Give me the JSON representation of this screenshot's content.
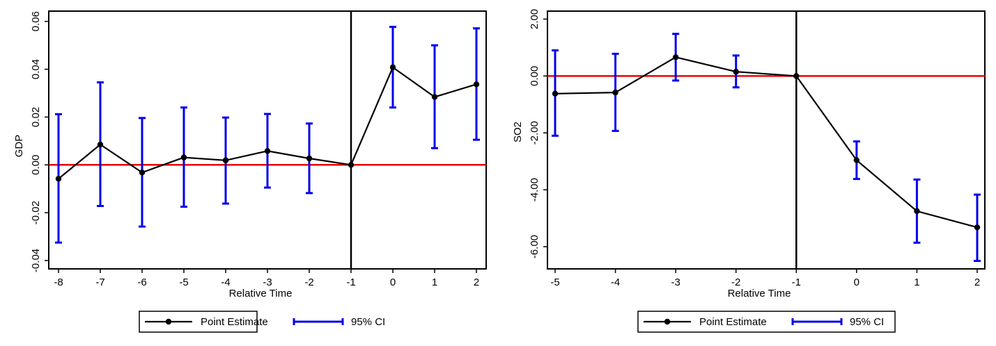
{
  "legend": {
    "point_label": "Point Estimate",
    "ci_label": "95% CI"
  },
  "colors": {
    "point": "#000000",
    "ci": "#0000ee",
    "zero_line": "#ee0000",
    "event_line": "#000000"
  },
  "chart_data": [
    {
      "type": "line",
      "xlabel": "Relative Time",
      "ylabel": "GDP",
      "xlim": [
        -8,
        2
      ],
      "ylim": [
        -0.04,
        0.06
      ],
      "xticks": [
        -8,
        -7,
        -6,
        -5,
        -4,
        -3,
        -2,
        -1,
        0,
        1,
        2
      ],
      "yticks": [
        -0.04,
        -0.02,
        0.0,
        0.02,
        0.04,
        0.06
      ],
      "ytick_labels": [
        "-0.04",
        "-0.02",
        "0.00",
        "0.02",
        "0.04",
        "0.06"
      ],
      "reference_hline": 0,
      "reference_vline": -1,
      "legend_position": "bottom",
      "series": [
        {
          "name": "Point Estimate",
          "x": [
            -8,
            -7,
            -6,
            -5,
            -4,
            -3,
            -2,
            -1,
            0,
            1,
            2
          ],
          "values": [
            -0.0058,
            0.0085,
            -0.0032,
            0.0031,
            0.0019,
            0.0058,
            0.0027,
            0.0,
            0.0408,
            0.0284,
            0.0337
          ],
          "ci_low": [
            -0.0325,
            -0.0172,
            -0.0258,
            -0.0175,
            -0.0162,
            -0.0095,
            -0.0118,
            null,
            0.024,
            0.007,
            0.0105
          ],
          "ci_high": [
            0.0212,
            0.0345,
            0.0196,
            0.024,
            0.0198,
            0.0213,
            0.0173,
            null,
            0.0577,
            0.05,
            0.0571
          ]
        }
      ]
    },
    {
      "type": "line",
      "xlabel": "Relative Time",
      "ylabel": "SO2",
      "xlim": [
        -5,
        2
      ],
      "ylim": [
        -6.8,
        2.2
      ],
      "xticks": [
        -5,
        -4,
        -3,
        -2,
        -1,
        0,
        1,
        2
      ],
      "yticks": [
        -6,
        -4,
        -2,
        0,
        2
      ],
      "ytick_labels": [
        "-6.00",
        "-4.00",
        "-2.00",
        "0.00",
        "2.00"
      ],
      "reference_hline": 0,
      "reference_vline": -1,
      "legend_position": "bottom",
      "series": [
        {
          "name": "Point Estimate",
          "x": [
            -5,
            -4,
            -3,
            -2,
            -1,
            0,
            1,
            2
          ],
          "values": [
            -0.62,
            -0.58,
            0.66,
            0.15,
            0.0,
            -2.96,
            -4.75,
            -5.32
          ],
          "ci_low": [
            -2.1,
            -1.93,
            -0.16,
            -0.4,
            null,
            -3.62,
            -5.86,
            -6.5
          ],
          "ci_high": [
            0.9,
            0.78,
            1.48,
            0.72,
            null,
            -2.3,
            -3.64,
            -4.17
          ]
        }
      ]
    }
  ]
}
